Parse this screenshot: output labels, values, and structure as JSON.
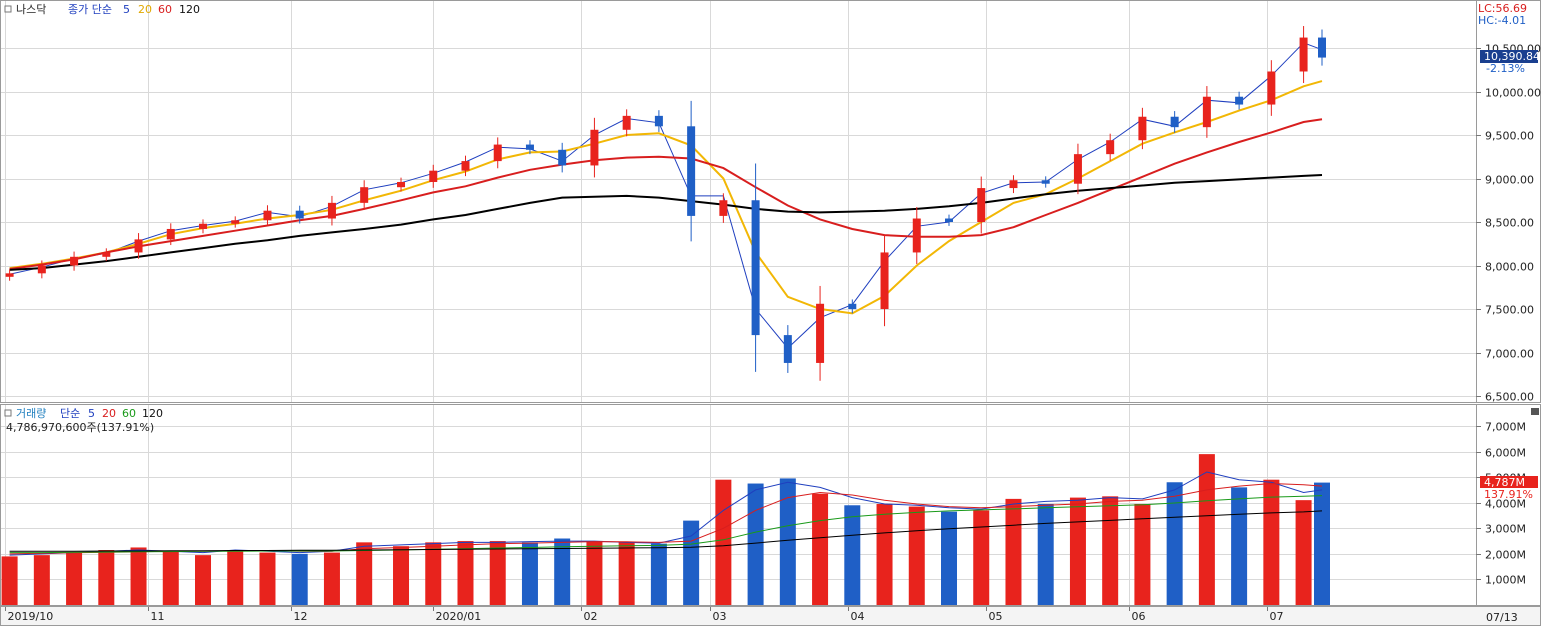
{
  "price_panel": {
    "name": "나스닥",
    "ma_title": "종가 단순",
    "ma_periods": [
      "5",
      "20",
      "60",
      "120"
    ],
    "ma_colors": [
      "#1f3fbf",
      "#f2b705",
      "#d81e1e",
      "#000000"
    ],
    "lc_label": "LC:56.69",
    "hc_label": "HC:-4.01",
    "last_value": "10,390.84",
    "change_pct": "-2.13%",
    "ytick_labels": [
      "10,500.00",
      "10,000.00",
      "9,500.00",
      "9,000.00",
      "8,500.00",
      "8,000.00",
      "7,500.00",
      "7,000.00",
      "6,500.00"
    ]
  },
  "volume_panel": {
    "name": "거래량",
    "ma_title": "단순",
    "ma_periods": [
      "5",
      "20",
      "60",
      "120"
    ],
    "ma_colors": [
      "#1f3fbf",
      "#d81e1e",
      "#1a9a1a",
      "#000000"
    ],
    "current_value": "4,786,970,600주(137.91%)",
    "last_value": "4,787M",
    "ratio": "137.91%",
    "ytick_labels": [
      "7,000M",
      "6,000M",
      "5,000M",
      "4,000M",
      "3,000M",
      "2,000M",
      "1,000M"
    ]
  },
  "x_axis": {
    "labels": [
      "2019/10",
      "11",
      "12",
      "2020/01",
      "02",
      "03",
      "04",
      "05",
      "06",
      "07"
    ],
    "date_box": "07/13"
  },
  "colors": {
    "up": "#e8231d",
    "down": "#1f5fc6",
    "grid": "#d9d9d9",
    "box": "#1a3f8f"
  },
  "chart_data": [
    {
      "type": "candlestick",
      "title": "나스닥",
      "x_range": [
        "2019-10-01",
        "2020-07-13"
      ],
      "ylim": [
        6500,
        10800
      ],
      "approximate": true,
      "x": [
        "2019-10-02",
        "2019-10-09",
        "2019-10-16",
        "2019-10-23",
        "2019-10-30",
        "2019-11-06",
        "2019-11-13",
        "2019-11-20",
        "2019-11-27",
        "2019-12-04",
        "2019-12-11",
        "2019-12-18",
        "2019-12-26",
        "2020-01-02",
        "2020-01-09",
        "2020-01-16",
        "2020-01-23",
        "2020-01-30",
        "2020-02-06",
        "2020-02-13",
        "2020-02-20",
        "2020-02-27",
        "2020-03-05",
        "2020-03-12",
        "2020-03-19",
        "2020-03-26",
        "2020-04-02",
        "2020-04-09",
        "2020-04-16",
        "2020-04-23",
        "2020-04-30",
        "2020-05-07",
        "2020-05-14",
        "2020-05-21",
        "2020-05-28",
        "2020-06-04",
        "2020-06-11",
        "2020-06-18",
        "2020-06-25",
        "2020-07-02",
        "2020-07-09",
        "2020-07-13"
      ],
      "close": [
        7910,
        8000,
        8100,
        8150,
        8300,
        8420,
        8480,
        8520,
        8630,
        8540,
        8720,
        8900,
        8960,
        9090,
        9200,
        9390,
        9330,
        9150,
        9560,
        9720,
        9600,
        8570,
        8750,
        7200,
        6880,
        7560,
        7500,
        8150,
        8540,
        8500,
        8890,
        8980,
        8940,
        9280,
        9440,
        9710,
        9590,
        9940,
        9850,
        10230,
        10620,
        10390
      ],
      "series": [
        {
          "name": "5",
          "values": [
            7900,
            7980,
            8080,
            8140,
            8280,
            8400,
            8460,
            8510,
            8610,
            8560,
            8680,
            8870,
            8950,
            9060,
            9190,
            9360,
            9340,
            9200,
            9500,
            9690,
            9640,
            8800,
            8800,
            7500,
            7050,
            7400,
            7550,
            8050,
            8450,
            8500,
            8830,
            8950,
            8960,
            9220,
            9420,
            9680,
            9600,
            9900,
            9870,
            10180,
            10560,
            10480
          ]
        },
        {
          "name": "20",
          "values": [
            7970,
            8020,
            8080,
            8150,
            8250,
            8360,
            8430,
            8480,
            8540,
            8580,
            8640,
            8750,
            8860,
            8980,
            9080,
            9220,
            9300,
            9310,
            9400,
            9500,
            9520,
            9380,
            9000,
            8150,
            7640,
            7500,
            7450,
            7650,
            8000,
            8280,
            8500,
            8720,
            8820,
            9000,
            9200,
            9400,
            9530,
            9650,
            9780,
            9900,
            10060,
            10120
          ]
        },
        {
          "name": "60",
          "values": [
            7960,
            8010,
            8070,
            8150,
            8220,
            8280,
            8340,
            8400,
            8460,
            8520,
            8570,
            8650,
            8750,
            8840,
            8910,
            9010,
            9100,
            9160,
            9210,
            9240,
            9250,
            9230,
            9120,
            8900,
            8690,
            8530,
            8420,
            8350,
            8330,
            8330,
            8350,
            8440,
            8580,
            8720,
            8870,
            9020,
            9170,
            9300,
            9420,
            9530,
            9650,
            9680
          ]
        },
        {
          "name": "120",
          "values": [
            7950,
            7970,
            8010,
            8050,
            8100,
            8150,
            8200,
            8250,
            8290,
            8340,
            8380,
            8420,
            8470,
            8530,
            8580,
            8650,
            8720,
            8780,
            8790,
            8800,
            8780,
            8740,
            8700,
            8650,
            8620,
            8610,
            8620,
            8630,
            8650,
            8680,
            8720,
            8770,
            8820,
            8860,
            8890,
            8920,
            8950,
            8970,
            8990,
            9010,
            9030,
            9040
          ]
        }
      ]
    },
    {
      "type": "bar",
      "title": "거래량",
      "ylim": [
        0,
        7500
      ],
      "unit": "M",
      "approximate": true,
      "x": [
        "2019-10-02",
        "2019-10-09",
        "2019-10-16",
        "2019-10-23",
        "2019-10-30",
        "2019-11-06",
        "2019-11-13",
        "2019-11-20",
        "2019-11-27",
        "2019-12-04",
        "2019-12-11",
        "2019-12-18",
        "2019-12-26",
        "2020-01-02",
        "2020-01-09",
        "2020-01-16",
        "2020-01-23",
        "2020-01-30",
        "2020-02-06",
        "2020-02-13",
        "2020-02-20",
        "2020-02-27",
        "2020-03-05",
        "2020-03-12",
        "2020-03-19",
        "2020-03-26",
        "2020-04-02",
        "2020-04-09",
        "2020-04-16",
        "2020-04-23",
        "2020-04-30",
        "2020-05-07",
        "2020-05-14",
        "2020-05-21",
        "2020-05-28",
        "2020-06-04",
        "2020-06-11",
        "2020-06-18",
        "2020-06-25",
        "2020-07-02",
        "2020-07-09",
        "2020-07-13"
      ],
      "values": [
        1900,
        1950,
        2050,
        2150,
        2250,
        2100,
        1950,
        2150,
        2050,
        2000,
        2050,
        2450,
        2300,
        2450,
        2500,
        2500,
        2450,
        2600,
        2500,
        2450,
        2400,
        3300,
        4900,
        4750,
        4950,
        4350,
        3900,
        3950,
        3850,
        3650,
        3700,
        4150,
        3950,
        4200,
        4250,
        3950,
        4800,
        5900,
        4600,
        4900,
        4100,
        4787
      ],
      "series": [
        {
          "name": "5",
          "values": [
            1950,
            2000,
            2050,
            2100,
            2150,
            2100,
            2050,
            2150,
            2100,
            2050,
            2100,
            2300,
            2350,
            2400,
            2450,
            2450,
            2480,
            2500,
            2500,
            2450,
            2420,
            2700,
            3700,
            4500,
            4800,
            4600,
            4200,
            3950,
            3900,
            3800,
            3750,
            3950,
            4050,
            4100,
            4200,
            4150,
            4500,
            5200,
            4900,
            4800,
            4400,
            4500
          ]
        },
        {
          "name": "20",
          "values": [
            2000,
            2020,
            2040,
            2060,
            2080,
            2100,
            2100,
            2120,
            2120,
            2100,
            2100,
            2200,
            2250,
            2300,
            2350,
            2400,
            2420,
            2450,
            2480,
            2470,
            2450,
            2500,
            3000,
            3700,
            4200,
            4400,
            4300,
            4100,
            3950,
            3850,
            3800,
            3850,
            3900,
            3950,
            4050,
            4100,
            4250,
            4500,
            4650,
            4750,
            4700,
            4650
          ]
        },
        {
          "name": "60",
          "values": [
            2050,
            2050,
            2060,
            2070,
            2080,
            2090,
            2100,
            2100,
            2110,
            2110,
            2110,
            2130,
            2150,
            2180,
            2200,
            2230,
            2250,
            2280,
            2300,
            2320,
            2330,
            2380,
            2550,
            2850,
            3100,
            3300,
            3450,
            3550,
            3620,
            3680,
            3720,
            3760,
            3800,
            3840,
            3880,
            3920,
            3990,
            4080,
            4150,
            4220,
            4250,
            4280
          ]
        },
        {
          "name": "120",
          "values": [
            2100,
            2100,
            2100,
            2110,
            2110,
            2120,
            2120,
            2130,
            2130,
            2140,
            2140,
            2150,
            2160,
            2170,
            2180,
            2190,
            2200,
            2210,
            2220,
            2230,
            2240,
            2260,
            2320,
            2420,
            2530,
            2630,
            2730,
            2820,
            2900,
            2980,
            3050,
            3120,
            3190,
            3250,
            3310,
            3370,
            3430,
            3490,
            3550,
            3600,
            3640,
            3680
          ]
        }
      ]
    }
  ]
}
